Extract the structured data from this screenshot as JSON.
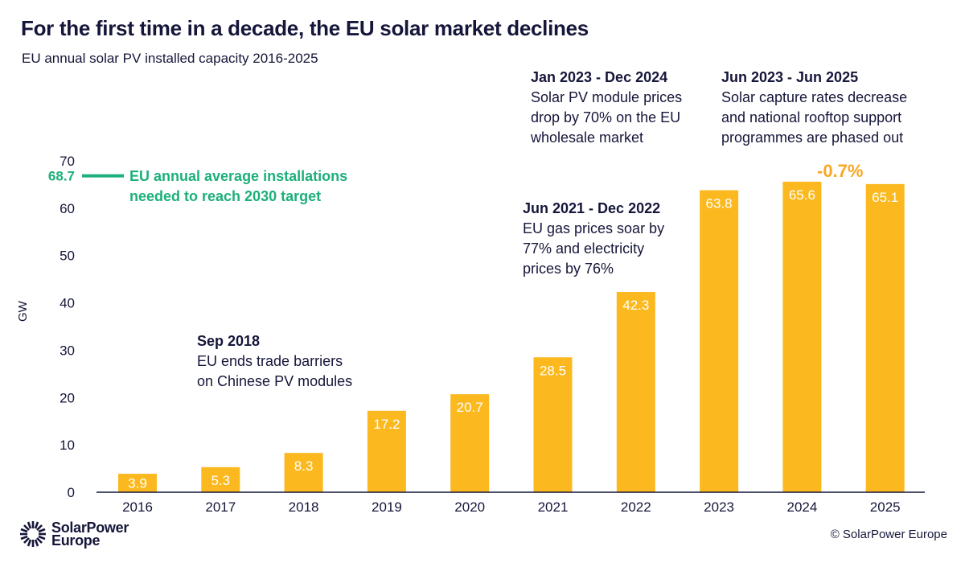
{
  "title": "For the first time in a decade, the EU solar market declines",
  "subtitle": "EU annual solar PV installed capacity 2016-2025",
  "colors": {
    "bar": "#fbb91f",
    "target": "#1cb07a",
    "text": "#15163a",
    "change": "#f7a823"
  },
  "chart_data": {
    "type": "bar",
    "categories": [
      "2016",
      "2017",
      "2018",
      "2019",
      "2020",
      "2021",
      "2022",
      "2023",
      "2024",
      "2025"
    ],
    "values": [
      3.9,
      5.3,
      8.3,
      17.2,
      20.7,
      28.5,
      42.3,
      63.8,
      65.6,
      65.1
    ],
    "ylabel": "GW",
    "ylim": [
      0,
      70
    ],
    "yticks": [
      0,
      10,
      20,
      30,
      40,
      50,
      60,
      70
    ],
    "grid": false,
    "target_line": {
      "value": 68.7,
      "value_label": "68.7",
      "label": "EU annual average installations needed to reach 2030 target"
    },
    "change_label": "-0.7%"
  },
  "annotations": [
    {
      "heading": "Sep 2018",
      "lines": [
        "EU ends trade barriers",
        "on Chinese PV modules"
      ]
    },
    {
      "heading": "Jun 2021 - Dec 2022",
      "lines": [
        "EU gas prices soar by",
        "77% and electricity",
        "prices by 76%"
      ]
    },
    {
      "heading": "Jan 2023 - Dec 2024",
      "lines": [
        "Solar PV module prices",
        "drop by 70% on the EU",
        "wholesale market"
      ]
    },
    {
      "heading": "Jun 2023 - Jun 2025",
      "lines": [
        "Solar capture rates decrease",
        "and national rooftop support",
        "programmes are phased out"
      ]
    }
  ],
  "footer": {
    "logo_line1": "SolarPower",
    "logo_line2": "Europe",
    "copyright": "© SolarPower Europe"
  }
}
